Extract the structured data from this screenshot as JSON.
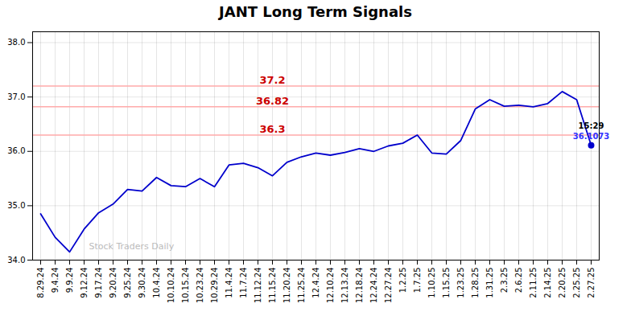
{
  "chart_data": {
    "type": "line",
    "title": "JANT Long Term Signals",
    "categories": [
      "8.29.24",
      "9.4.24",
      "9.9.24",
      "9.12.24",
      "9.17.24",
      "9.20.24",
      "9.25.24",
      "9.30.24",
      "10.4.24",
      "10.10.24",
      "10.15.24",
      "10.23.24",
      "10.29.24",
      "11.4.24",
      "11.7.24",
      "11.12.24",
      "11.15.24",
      "11.20.24",
      "11.25.24",
      "12.4.24",
      "12.10.24",
      "12.13.24",
      "12.18.24",
      "12.24.24",
      "12.27.24",
      "1.2.25",
      "1.7.25",
      "1.10.25",
      "1.15.25",
      "1.23.25",
      "1.28.25",
      "1.31.25",
      "2.3.25",
      "2.6.25",
      "2.11.25",
      "2.14.25",
      "2.20.25",
      "2.25.25",
      "2.27.25"
    ],
    "values": [
      34.85,
      34.42,
      34.15,
      34.57,
      34.87,
      35.03,
      35.3,
      35.27,
      35.52,
      35.37,
      35.35,
      35.5,
      35.35,
      35.75,
      35.78,
      35.7,
      35.55,
      35.8,
      35.9,
      35.97,
      35.93,
      35.98,
      36.05,
      36.0,
      36.1,
      36.15,
      36.3,
      35.97,
      35.95,
      36.2,
      36.78,
      36.95,
      36.83,
      36.85,
      36.82,
      36.88,
      37.1,
      36.95,
      36.11
    ],
    "color": "#0000cc",
    "hlines": [
      {
        "value": 37.2,
        "label": "37.2",
        "color": "#ffaaaa",
        "label_color": "#cc0000"
      },
      {
        "value": 36.82,
        "label": "36.82",
        "color": "#ffaaaa",
        "label_color": "#cc0000"
      },
      {
        "value": 36.3,
        "label": "36.3",
        "color": "#ffaaaa",
        "label_color": "#cc0000"
      }
    ],
    "annotations": [
      {
        "x": "2.27.25",
        "y": 36.11,
        "text": "15:29",
        "color": "black",
        "marker": "circle"
      },
      {
        "x": "2.27.25",
        "y": 36.11,
        "text": "36.1073",
        "color": "#3333ff"
      }
    ],
    "watermark": {
      "text": "Stock Traders Daily",
      "color": "#bbbbbb"
    },
    "ylim": [
      34.0,
      38.2
    ],
    "yticks": [
      34,
      35,
      36,
      37,
      38
    ],
    "grid": true
  }
}
